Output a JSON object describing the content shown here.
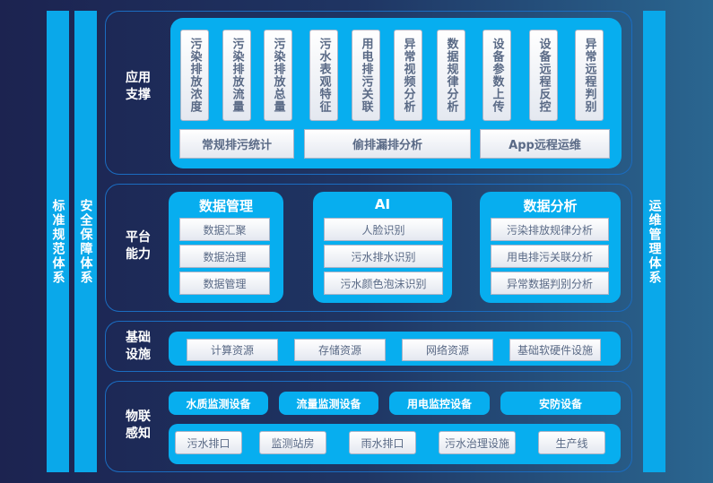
{
  "side": {
    "left1": "标准规范体系",
    "left2": "安全保障体系",
    "right": "运维管理体系"
  },
  "app": {
    "label": "应用支撑",
    "vertical": [
      "污染排放浓度",
      "污染排放流量",
      "污染排放总量",
      "污水表观特征",
      "用电排污关联",
      "异常视频分析",
      "数据规律分析",
      "设备参数上传",
      "设备远程反控",
      "异常远程判别"
    ],
    "wide": [
      "常规排污统计",
      "偷排漏排分析",
      "App远程运维"
    ]
  },
  "platform": {
    "label": "平台能力",
    "groups": [
      {
        "title": "数据管理",
        "items": [
          "数据汇聚",
          "数据治理",
          "数据管理"
        ]
      },
      {
        "title": "AI",
        "items": [
          "人脸识别",
          "污水排水识别",
          "污水颜色泡沫识别"
        ]
      },
      {
        "title": "数据分析",
        "items": [
          "污染排放规律分析",
          "用电排污关联分析",
          "异常数据判别分析"
        ]
      }
    ]
  },
  "infra": {
    "label": "基础设施",
    "items": [
      "计算资源",
      "存储资源",
      "网络资源",
      "基础软硬件设施"
    ]
  },
  "iot": {
    "label": "物联感知",
    "devices": [
      "水质监测设备",
      "流量监测设备",
      "用电监控设备",
      "安防设备"
    ],
    "sites": [
      "污水排口",
      "监测站房",
      "雨水排口",
      "污水治理设施",
      "生产线"
    ]
  },
  "colors": {
    "accent": "#07aeef",
    "background": "#1f3563"
  }
}
